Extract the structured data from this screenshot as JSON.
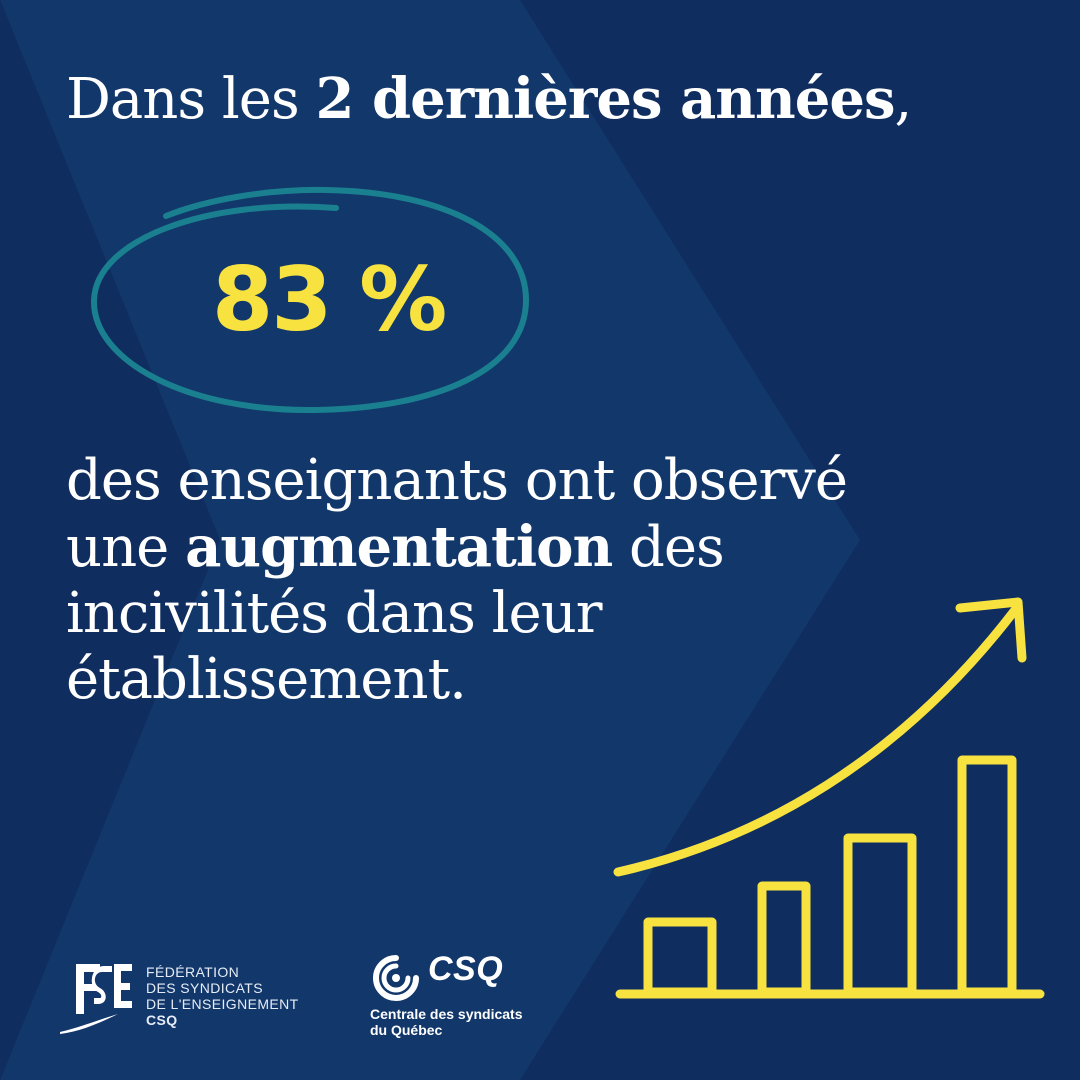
{
  "headline": {
    "prefix": "Dans les ",
    "emphasis": "2 dernières années",
    "suffix": ","
  },
  "stat": {
    "value": "83 %"
  },
  "body": {
    "line1": "des  enseignants ont observé",
    "line2_prefix": "une ",
    "line2_emphasis": "augmentation",
    "line2_suffix": " des",
    "line3": "incivilités dans leur",
    "line4": "établissement."
  },
  "logos": {
    "fse": {
      "line1": "FÉDÉRATION",
      "line2": "DES SYNDICATS",
      "line3": "DE L'ENSEIGNEMENT",
      "line4": "CSQ"
    },
    "csq": {
      "mark": "CSQ",
      "line1": "Centrale des syndicats",
      "line2": "du Québec"
    }
  },
  "colors": {
    "background": "#0f2d5f",
    "chevron": "#133a6d",
    "accent_yellow": "#f7e240",
    "ring_teal": "#1a7f8f",
    "text": "#ffffff"
  },
  "icons": {
    "chart": "bar-chart-growth-icon",
    "arrow": "trend-arrow-icon"
  }
}
